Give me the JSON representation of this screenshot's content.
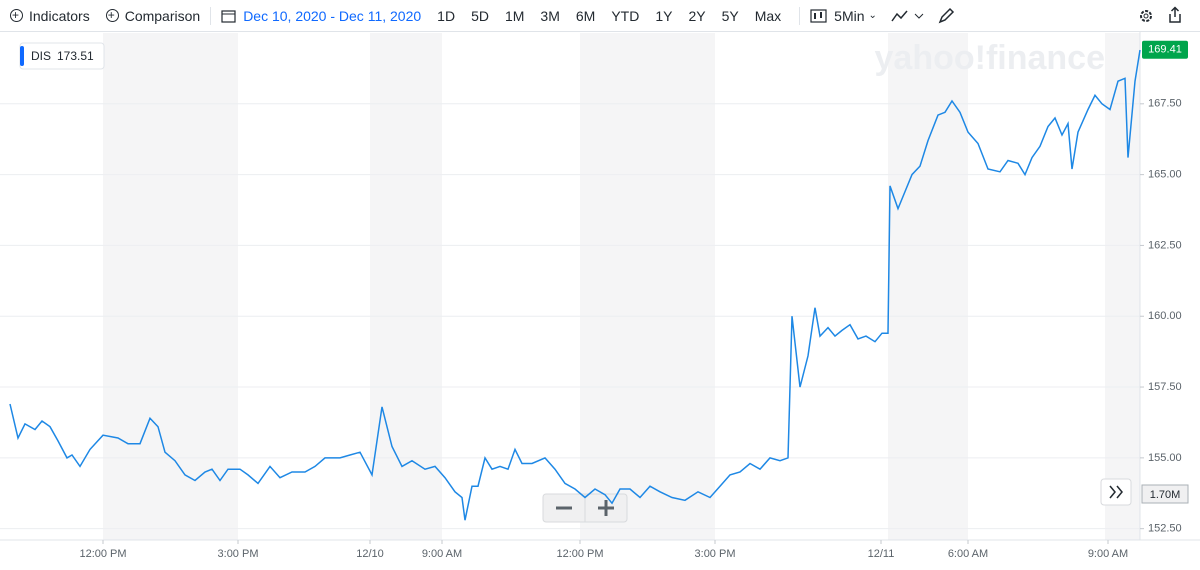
{
  "toolbar": {
    "indicators": "Indicators",
    "comparison": "Comparison",
    "date_range": "Dec 10, 2020 - Dec 11, 2020",
    "ranges": [
      "1D",
      "5D",
      "1M",
      "3M",
      "6M",
      "YTD",
      "1Y",
      "2Y",
      "5Y",
      "Max"
    ],
    "interval": "5Min"
  },
  "watermark": "yahoo!finance",
  "chart_data": {
    "type": "line",
    "x": [
      0,
      8,
      15,
      25,
      32,
      40,
      48,
      57,
      62,
      70,
      80,
      93,
      108,
      118,
      130,
      140,
      148,
      155,
      165,
      175,
      185,
      195,
      202,
      210,
      218,
      230,
      238,
      248,
      260,
      270,
      282,
      295,
      305,
      315,
      330,
      340,
      350,
      362,
      372,
      382,
      392,
      402,
      415,
      425,
      435,
      445,
      452,
      455,
      462,
      468,
      475,
      482,
      490,
      498,
      505,
      512,
      522,
      535,
      545,
      555,
      565,
      575,
      585,
      595,
      602,
      610,
      620,
      630,
      640,
      650,
      662,
      675,
      688,
      700,
      710,
      720,
      730,
      740,
      750,
      760,
      770,
      778,
      782,
      790,
      798,
      805,
      810,
      818,
      825,
      832,
      840,
      848,
      856,
      865,
      872,
      878,
      880,
      888,
      895,
      902,
      910,
      918,
      928,
      935,
      942,
      950,
      958,
      968,
      978,
      990,
      998,
      1008,
      1015,
      1022,
      1030,
      1038,
      1045,
      1052,
      1058,
      1062,
      1068,
      1078,
      1085,
      1092,
      1100,
      1108,
      1115,
      1118,
      1125,
      1130
    ],
    "series": [
      {
        "name": "DIS",
        "color": "#1e88e5",
        "values": [
          156.9,
          155.7,
          156.2,
          156.0,
          156.3,
          156.1,
          155.6,
          155.0,
          155.1,
          154.7,
          155.3,
          155.8,
          155.7,
          155.5,
          155.5,
          156.4,
          156.1,
          155.2,
          154.9,
          154.4,
          154.2,
          154.5,
          154.6,
          154.2,
          154.6,
          154.6,
          154.4,
          154.1,
          154.7,
          154.3,
          154.5,
          154.5,
          154.7,
          155.0,
          155.0,
          155.1,
          155.2,
          154.4,
          156.8,
          155.4,
          154.7,
          154.9,
          154.6,
          154.7,
          154.3,
          153.8,
          153.6,
          152.8,
          154.0,
          154.0,
          155.0,
          154.6,
          154.7,
          154.6,
          155.3,
          154.8,
          154.8,
          155.0,
          154.6,
          154.1,
          153.9,
          153.6,
          153.9,
          153.7,
          153.4,
          153.9,
          153.9,
          153.6,
          154.0,
          153.8,
          153.6,
          153.5,
          153.8,
          153.6,
          154.0,
          154.4,
          154.5,
          154.8,
          154.6,
          155.0,
          154.9,
          155.0,
          160.0,
          157.5,
          158.6,
          160.3,
          159.3,
          159.6,
          159.3,
          159.5,
          159.7,
          159.2,
          159.3,
          159.1,
          159.4,
          159.4,
          164.6,
          163.8,
          164.4,
          165.0,
          165.3,
          166.2,
          167.1,
          167.2,
          167.6,
          167.2,
          166.5,
          166.1,
          165.2,
          165.1,
          165.5,
          165.4,
          165.0,
          165.6,
          166.0,
          166.7,
          167.0,
          166.4,
          166.8,
          165.2,
          166.5,
          167.3,
          167.8,
          167.5,
          167.3,
          168.3,
          168.4,
          165.6,
          168.3,
          169.4
        ]
      }
    ],
    "legend_value": 173.51,
    "last_price": 169.41,
    "volume_label": "1.70M",
    "xlim": [
      0,
      1130
    ],
    "xticks": [
      {
        "value": 93,
        "label": "12:00 PM"
      },
      {
        "value": 228,
        "label": "3:00 PM"
      },
      {
        "value": 360,
        "label": "12/10"
      },
      {
        "value": 432,
        "label": "9:00 AM"
      },
      {
        "value": 570,
        "label": "12:00 PM"
      },
      {
        "value": 705,
        "label": "3:00 PM"
      },
      {
        "value": 871,
        "label": "12/11"
      },
      {
        "value": 958,
        "label": "6:00 AM"
      },
      {
        "value": 1098,
        "label": "9:00 AM"
      }
    ],
    "ylim": [
      152.1,
      170
    ],
    "yticks": [
      {
        "value": 152.5,
        "label": "152.50"
      },
      {
        "value": 155,
        "label": "155.00"
      },
      {
        "value": 157.5,
        "label": "157.50"
      },
      {
        "value": 160,
        "label": "160.00"
      },
      {
        "value": 162.5,
        "label": "162.50"
      },
      {
        "value": 165,
        "label": "165.00"
      },
      {
        "value": 167.5,
        "label": "167.50"
      }
    ],
    "grid": true,
    "last_price_color": "#00a54c"
  }
}
